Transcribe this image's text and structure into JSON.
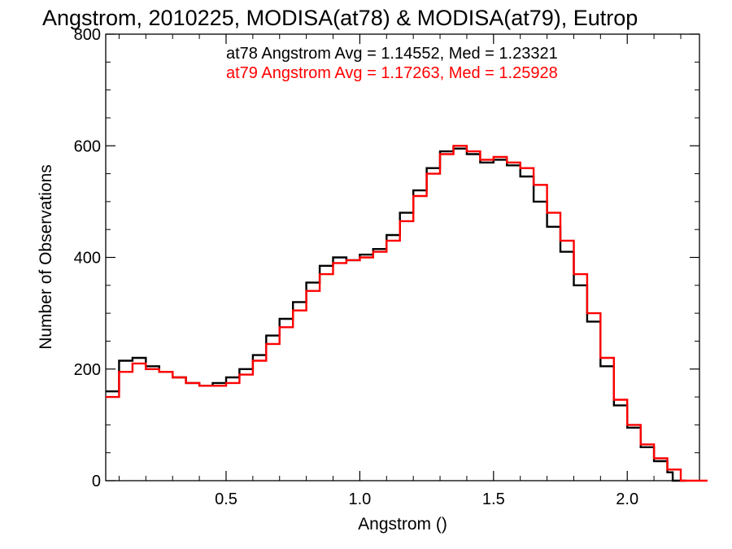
{
  "chart_data": {
    "type": "line",
    "title": "Angstrom, 2010225, MODISA(at78) & MODISA(at79), Eutrop",
    "xlabel": "Angstrom ()",
    "ylabel": "Number of Observations",
    "xlim": [
      0.05,
      2.27
    ],
    "ylim": [
      0,
      800
    ],
    "x_ticks": [
      0.5,
      1.0,
      1.5,
      2.0
    ],
    "x_tick_labels": [
      "0.5",
      "1.0",
      "1.5",
      "2.0"
    ],
    "y_ticks": [
      0,
      200,
      400,
      600,
      800
    ],
    "y_tick_labels": [
      "0",
      "200",
      "400",
      "600",
      "800"
    ],
    "grid": false,
    "legend_placement": "top-center",
    "annotations": [
      {
        "text": "at78 Angstrom Avg = 1.14552, Med = 1.23321",
        "color": "#000000"
      },
      {
        "text": "at79 Angstrom Avg = 1.17263, Med = 1.25928",
        "color": "#ff0000"
      }
    ],
    "series": [
      {
        "color": "#000000",
        "x": [
          0.05,
          0.1,
          0.15,
          0.2,
          0.25,
          0.3,
          0.35,
          0.4,
          0.45,
          0.5,
          0.55,
          0.6,
          0.65,
          0.7,
          0.75,
          0.8,
          0.85,
          0.9,
          0.95,
          1.0,
          1.05,
          1.1,
          1.15,
          1.2,
          1.25,
          1.3,
          1.35,
          1.4,
          1.45,
          1.5,
          1.55,
          1.6,
          1.65,
          1.7,
          1.75,
          1.8,
          1.85,
          1.9,
          1.95,
          2.0,
          2.05,
          2.1,
          2.15,
          2.17
        ],
        "values": [
          160,
          215,
          220,
          205,
          195,
          185,
          175,
          170,
          175,
          185,
          200,
          225,
          260,
          290,
          320,
          355,
          385,
          400,
          395,
          405,
          415,
          440,
          480,
          520,
          560,
          590,
          595,
          585,
          570,
          575,
          565,
          545,
          500,
          455,
          410,
          350,
          285,
          205,
          135,
          95,
          60,
          35,
          15,
          0
        ]
      },
      {
        "color": "#ff0000",
        "x": [
          0.05,
          0.1,
          0.15,
          0.2,
          0.25,
          0.3,
          0.35,
          0.4,
          0.45,
          0.5,
          0.55,
          0.6,
          0.65,
          0.7,
          0.75,
          0.8,
          0.85,
          0.9,
          0.95,
          1.0,
          1.05,
          1.1,
          1.15,
          1.2,
          1.25,
          1.3,
          1.35,
          1.4,
          1.45,
          1.5,
          1.55,
          1.6,
          1.65,
          1.7,
          1.75,
          1.8,
          1.85,
          1.9,
          1.95,
          2.0,
          2.05,
          2.1,
          2.15,
          2.2,
          2.25
        ],
        "values": [
          150,
          195,
          210,
          200,
          195,
          185,
          175,
          170,
          170,
          175,
          190,
          215,
          245,
          275,
          305,
          340,
          370,
          390,
          395,
          400,
          410,
          430,
          465,
          510,
          550,
          585,
          600,
          590,
          575,
          580,
          570,
          560,
          530,
          480,
          430,
          370,
          300,
          220,
          145,
          100,
          65,
          40,
          20,
          0,
          0
        ]
      }
    ]
  }
}
